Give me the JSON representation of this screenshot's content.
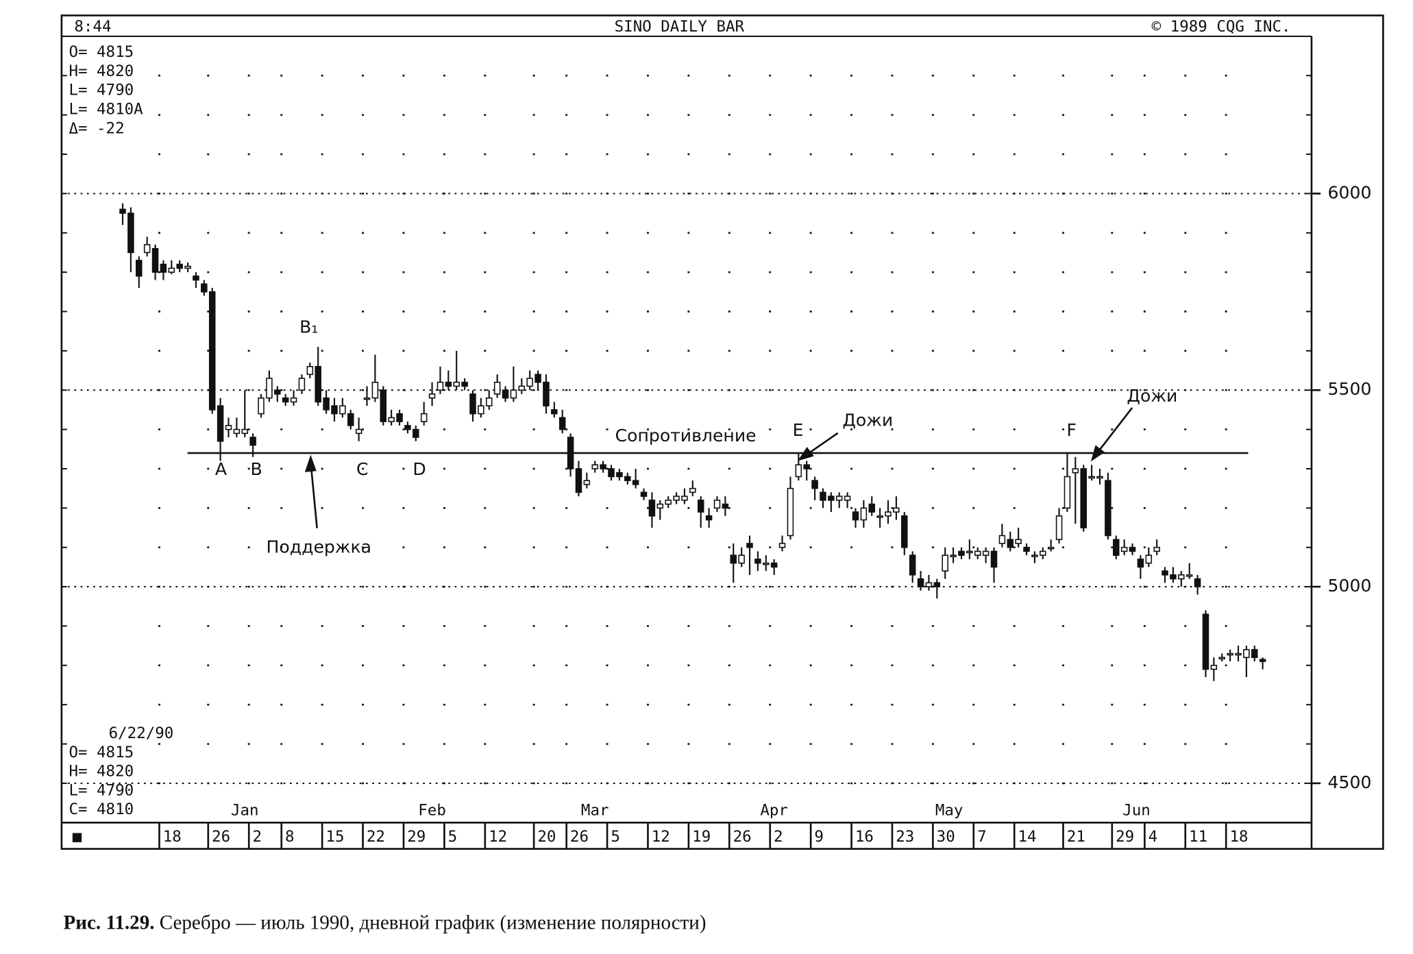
{
  "chart_data": {
    "type": "candlestick",
    "clock": "8:44",
    "title": "SINO DAILY BAR",
    "copyright": "© 1989 CQG INC.",
    "info_top": [
      "O= 4815",
      "H= 4820",
      "L= 4790",
      "L= 4810A",
      "Δ=  -22"
    ],
    "info_bottom": [
      "6/22/90",
      "O= 4815",
      "H= 4820",
      "L= 4790",
      "C= 4810"
    ],
    "corner_mark": "■",
    "annotations": [
      "B₁",
      "A",
      "B",
      "C",
      "D",
      "Поддержка",
      "Сопротивление",
      "E",
      "Дожи",
      "F",
      "Дожи"
    ],
    "level": 5340,
    "caption_label": "Рис. 11.29.",
    "caption": "Серебро — июль 1990, дневной график (изменение полярности)",
    "ylim": [
      4400,
      6400
    ],
    "yticks": [
      4500,
      5000,
      5500,
      6000
    ],
    "minor_yticks": [
      4500,
      4600,
      4700,
      4800,
      4900,
      5000,
      5100,
      5200,
      5300,
      5400,
      5500,
      5600,
      5700,
      5800,
      5900,
      6000,
      6100,
      6200,
      6300
    ],
    "xlim": [
      -7.5,
      146
    ],
    "xticks": [
      {
        "value": 4.5,
        "label": "18"
      },
      {
        "value": 10.5,
        "label": "26"
      },
      {
        "value": 15.5,
        "label": "2"
      },
      {
        "value": 19.5,
        "label": "8"
      },
      {
        "value": 24.5,
        "label": "15"
      },
      {
        "value": 29.5,
        "label": "22"
      },
      {
        "value": 34.5,
        "label": "29"
      },
      {
        "value": 39.5,
        "label": "5"
      },
      {
        "value": 44.5,
        "label": "12"
      },
      {
        "value": 50.5,
        "label": "20"
      },
      {
        "value": 54.5,
        "label": "26"
      },
      {
        "value": 59.5,
        "label": "5"
      },
      {
        "value": 64.5,
        "label": "12"
      },
      {
        "value": 69.5,
        "label": "19"
      },
      {
        "value": 74.5,
        "label": "26"
      },
      {
        "value": 79.5,
        "label": "2"
      },
      {
        "value": 84.5,
        "label": "9"
      },
      {
        "value": 89.5,
        "label": "16"
      },
      {
        "value": 94.5,
        "label": "23"
      },
      {
        "value": 99.5,
        "label": "30"
      },
      {
        "value": 104.5,
        "label": "7"
      },
      {
        "value": 109.5,
        "label": "14"
      },
      {
        "value": 115.5,
        "label": "21"
      },
      {
        "value": 121.5,
        "label": "29"
      },
      {
        "value": 125.5,
        "label": "4"
      },
      {
        "value": 130.5,
        "label": "11"
      },
      {
        "value": 135.5,
        "label": "18"
      }
    ],
    "months": [
      {
        "value": 15,
        "label": "Jan"
      },
      {
        "value": 38,
        "label": "Feb"
      },
      {
        "value": 58,
        "label": "Mar"
      },
      {
        "value": 80,
        "label": "Apr"
      },
      {
        "value": 101.5,
        "label": "May"
      },
      {
        "value": 124.5,
        "label": "Jun"
      }
    ],
    "ohlc": [
      [
        5960,
        5975,
        5920,
        5950
      ],
      [
        5950,
        5965,
        5800,
        5850
      ],
      [
        5830,
        5840,
        5760,
        5790
      ],
      [
        5850,
        5890,
        5840,
        5870
      ],
      [
        5860,
        5870,
        5780,
        5800
      ],
      [
        5820,
        5830,
        5780,
        5800
      ],
      [
        5800,
        5830,
        5795,
        5810
      ],
      [
        5820,
        5830,
        5800,
        5810
      ],
      [
        5810,
        5825,
        5800,
        5815
      ],
      [
        5790,
        5800,
        5760,
        5780
      ],
      [
        5770,
        5780,
        5740,
        5750
      ],
      [
        5750,
        5760,
        5440,
        5450
      ],
      [
        5460,
        5480,
        5320,
        5370
      ],
      [
        5400,
        5430,
        5380,
        5410
      ],
      [
        5390,
        5430,
        5380,
        5400
      ],
      [
        5390,
        5500,
        5380,
        5400
      ],
      [
        5380,
        5390,
        5330,
        5360
      ],
      [
        5440,
        5490,
        5430,
        5480
      ],
      [
        5480,
        5550,
        5470,
        5530
      ],
      [
        5500,
        5510,
        5470,
        5490
      ],
      [
        5480,
        5490,
        5460,
        5470
      ],
      [
        5470,
        5500,
        5460,
        5480
      ],
      [
        5500,
        5540,
        5490,
        5530
      ],
      [
        5540,
        5570,
        5530,
        5560
      ],
      [
        5560,
        5610,
        5460,
        5470
      ],
      [
        5480,
        5500,
        5440,
        5450
      ],
      [
        5460,
        5480,
        5420,
        5440
      ],
      [
        5440,
        5480,
        5430,
        5460
      ],
      [
        5440,
        5450,
        5400,
        5410
      ],
      [
        5390,
        5430,
        5370,
        5400
      ],
      [
        5480,
        5510,
        5460,
        5480
      ],
      [
        5480,
        5590,
        5470,
        5520
      ],
      [
        5500,
        5510,
        5410,
        5420
      ],
      [
        5420,
        5450,
        5410,
        5430
      ],
      [
        5440,
        5450,
        5410,
        5420
      ],
      [
        5410,
        5420,
        5390,
        5400
      ],
      [
        5400,
        5410,
        5370,
        5380
      ],
      [
        5420,
        5470,
        5410,
        5440
      ],
      [
        5480,
        5520,
        5460,
        5490
      ],
      [
        5500,
        5560,
        5490,
        5520
      ],
      [
        5520,
        5550,
        5500,
        5510
      ],
      [
        5510,
        5600,
        5500,
        5520
      ],
      [
        5520,
        5530,
        5500,
        5510
      ],
      [
        5490,
        5500,
        5420,
        5440
      ],
      [
        5440,
        5480,
        5430,
        5460
      ],
      [
        5460,
        5500,
        5450,
        5480
      ],
      [
        5490,
        5540,
        5480,
        5520
      ],
      [
        5500,
        5510,
        5470,
        5480
      ],
      [
        5480,
        5560,
        5470,
        5500
      ],
      [
        5500,
        5530,
        5490,
        5510
      ],
      [
        5510,
        5550,
        5500,
        5530
      ],
      [
        5540,
        5550,
        5500,
        5520
      ],
      [
        5520,
        5540,
        5440,
        5460
      ],
      [
        5450,
        5470,
        5430,
        5440
      ],
      [
        5430,
        5450,
        5390,
        5400
      ],
      [
        5380,
        5390,
        5280,
        5300
      ],
      [
        5300,
        5320,
        5230,
        5240
      ],
      [
        5260,
        5290,
        5250,
        5270
      ],
      [
        5300,
        5320,
        5290,
        5310
      ],
      [
        5310,
        5320,
        5290,
        5300
      ],
      [
        5300,
        5310,
        5270,
        5280
      ],
      [
        5290,
        5300,
        5270,
        5280
      ],
      [
        5280,
        5290,
        5260,
        5270
      ],
      [
        5270,
        5300,
        5250,
        5260
      ],
      [
        5240,
        5250,
        5220,
        5230
      ],
      [
        5220,
        5240,
        5150,
        5180
      ],
      [
        5200,
        5220,
        5170,
        5210
      ],
      [
        5210,
        5230,
        5200,
        5220
      ],
      [
        5220,
        5240,
        5210,
        5230
      ],
      [
        5220,
        5250,
        5210,
        5230
      ],
      [
        5240,
        5270,
        5230,
        5250
      ],
      [
        5220,
        5230,
        5150,
        5190
      ],
      [
        5180,
        5200,
        5150,
        5170
      ],
      [
        5200,
        5230,
        5190,
        5220
      ],
      [
        5210,
        5230,
        5180,
        5200
      ],
      [
        5080,
        5110,
        5010,
        5060
      ],
      [
        5060,
        5100,
        5050,
        5080
      ],
      [
        5110,
        5130,
        5030,
        5100
      ],
      [
        5070,
        5090,
        5040,
        5060
      ],
      [
        5060,
        5080,
        5040,
        5060
      ],
      [
        5060,
        5070,
        5030,
        5050
      ],
      [
        5100,
        5130,
        5090,
        5110
      ],
      [
        5130,
        5280,
        5120,
        5250
      ],
      [
        5280,
        5340,
        5270,
        5310
      ],
      [
        5310,
        5320,
        5270,
        5300
      ],
      [
        5270,
        5280,
        5220,
        5250
      ],
      [
        5240,
        5250,
        5200,
        5220
      ],
      [
        5230,
        5240,
        5190,
        5220
      ],
      [
        5220,
        5240,
        5200,
        5230
      ],
      [
        5220,
        5240,
        5200,
        5230
      ],
      [
        5190,
        5200,
        5150,
        5170
      ],
      [
        5170,
        5220,
        5150,
        5200
      ],
      [
        5210,
        5230,
        5180,
        5190
      ],
      [
        5180,
        5200,
        5150,
        5180
      ],
      [
        5180,
        5220,
        5160,
        5190
      ],
      [
        5190,
        5230,
        5170,
        5200
      ],
      [
        5180,
        5190,
        5080,
        5100
      ],
      [
        5080,
        5090,
        5010,
        5030
      ],
      [
        5020,
        5040,
        4990,
        5000
      ],
      [
        5000,
        5030,
        4990,
        5010
      ],
      [
        5010,
        5020,
        4970,
        5000
      ],
      [
        5040,
        5100,
        5020,
        5080
      ],
      [
        5080,
        5100,
        5060,
        5080
      ],
      [
        5090,
        5100,
        5070,
        5080
      ],
      [
        5090,
        5120,
        5070,
        5090
      ],
      [
        5080,
        5100,
        5070,
        5090
      ],
      [
        5080,
        5100,
        5060,
        5090
      ],
      [
        5090,
        5100,
        5010,
        5050
      ],
      [
        5110,
        5160,
        5100,
        5130
      ],
      [
        5120,
        5140,
        5090,
        5100
      ],
      [
        5110,
        5150,
        5100,
        5120
      ],
      [
        5100,
        5110,
        5080,
        5090
      ],
      [
        5080,
        5090,
        5060,
        5080
      ],
      [
        5080,
        5100,
        5070,
        5090
      ],
      [
        5100,
        5120,
        5090,
        5100
      ],
      [
        5120,
        5200,
        5110,
        5180
      ],
      [
        5200,
        5340,
        5190,
        5280
      ],
      [
        5290,
        5330,
        5160,
        5300
      ],
      [
        5300,
        5310,
        5140,
        5150
      ],
      [
        5280,
        5310,
        5270,
        5280
      ],
      [
        5280,
        5300,
        5260,
        5280
      ],
      [
        5270,
        5290,
        5120,
        5130
      ],
      [
        5120,
        5130,
        5070,
        5080
      ],
      [
        5090,
        5120,
        5080,
        5100
      ],
      [
        5100,
        5110,
        5080,
        5090
      ],
      [
        5070,
        5080,
        5020,
        5050
      ],
      [
        5060,
        5100,
        5050,
        5080
      ],
      [
        5090,
        5120,
        5080,
        5100
      ],
      [
        5040,
        5050,
        5010,
        5030
      ],
      [
        5030,
        5050,
        5010,
        5020
      ],
      [
        5020,
        5040,
        5000,
        5030
      ],
      [
        5030,
        5060,
        5020,
        5030
      ],
      [
        5020,
        5030,
        4980,
        5000
      ],
      [
        4930,
        4940,
        4770,
        4790
      ],
      [
        4790,
        4820,
        4760,
        4800
      ],
      [
        4820,
        4830,
        4810,
        4820
      ],
      [
        4830,
        4840,
        4810,
        4830
      ],
      [
        4830,
        4850,
        4810,
        4830
      ],
      [
        4820,
        4850,
        4770,
        4840
      ],
      [
        4840,
        4850,
        4810,
        4820
      ],
      [
        4815,
        4820,
        4790,
        4810
      ]
    ]
  }
}
